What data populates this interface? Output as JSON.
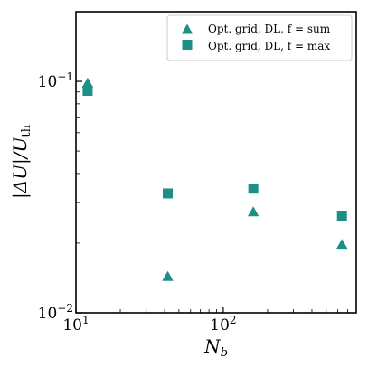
{
  "chart_data": {
    "type": "scatter",
    "x_scale": "log",
    "y_scale": "log",
    "xlim": [
      10,
      800
    ],
    "ylim": [
      0.01,
      0.2
    ],
    "x_ticks": [
      {
        "value": 10,
        "base": "10",
        "exp": "1"
      },
      {
        "value": 100,
        "base": "10",
        "exp": "2"
      }
    ],
    "y_ticks": [
      {
        "value": 0.01,
        "base": "10",
        "exp": "−2"
      },
      {
        "value": 0.1,
        "base": "10",
        "exp": "−1"
      }
    ],
    "xlabel": {
      "main": "N",
      "sub": "b"
    },
    "ylabel": {
      "pre": "|ΔU|/U",
      "sub": "th"
    },
    "legend_position": "top-right",
    "grid": false,
    "series": [
      {
        "name": "Opt. grid, DL, f = sum",
        "marker": "triangle",
        "color": "#1e8f86",
        "points": [
          {
            "x": 12,
            "y": 0.098
          },
          {
            "x": 42,
            "y": 0.0143
          },
          {
            "x": 160,
            "y": 0.0272
          },
          {
            "x": 640,
            "y": 0.0197
          }
        ]
      },
      {
        "name": "Opt. grid, DL, f = max",
        "marker": "square",
        "color": "#1e8f86",
        "points": [
          {
            "x": 12,
            "y": 0.091
          },
          {
            "x": 42,
            "y": 0.0328
          },
          {
            "x": 160,
            "y": 0.0344
          },
          {
            "x": 640,
            "y": 0.0263
          }
        ]
      }
    ]
  }
}
